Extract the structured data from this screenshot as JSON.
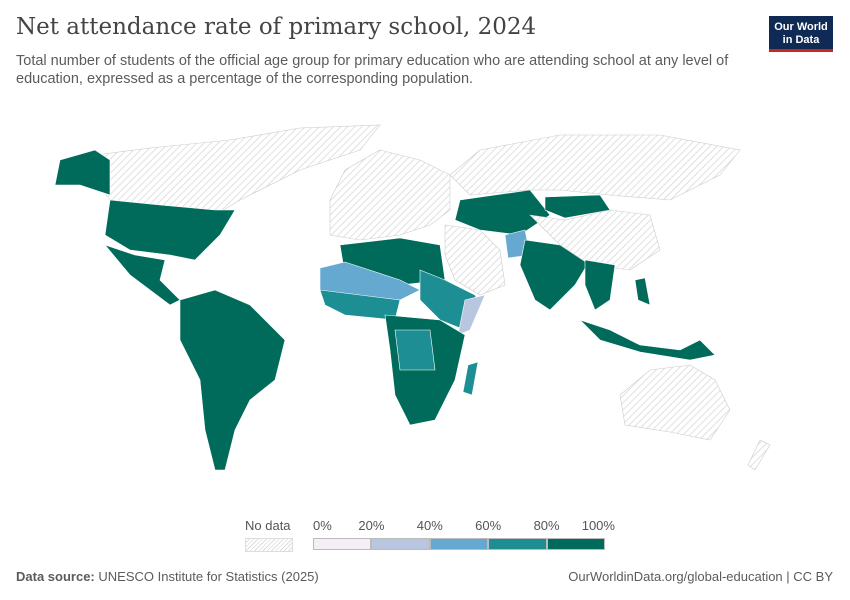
{
  "header": {
    "title": "Net attendance rate of primary school, 2024",
    "subtitle": "Total number of students of the official age group for primary education who are attending school at any level of education, expressed as a percentage of the corresponding population.",
    "logo": "Our World in Data"
  },
  "legend": {
    "no_data_label": "No data",
    "bins": [
      "0%",
      "20%",
      "40%",
      "60%",
      "80%",
      "100%"
    ],
    "colors": [
      "#f4eef5",
      "#b9c6e0",
      "#65a8d0",
      "#1d8f94",
      "#006b5b"
    ],
    "no_data_color": "#e6e6e6"
  },
  "footer": {
    "source_label": "Data source:",
    "source": "UNESCO Institute for Statistics (2025)",
    "url": "OurWorldinData.org/global-education | CC BY"
  }
}
